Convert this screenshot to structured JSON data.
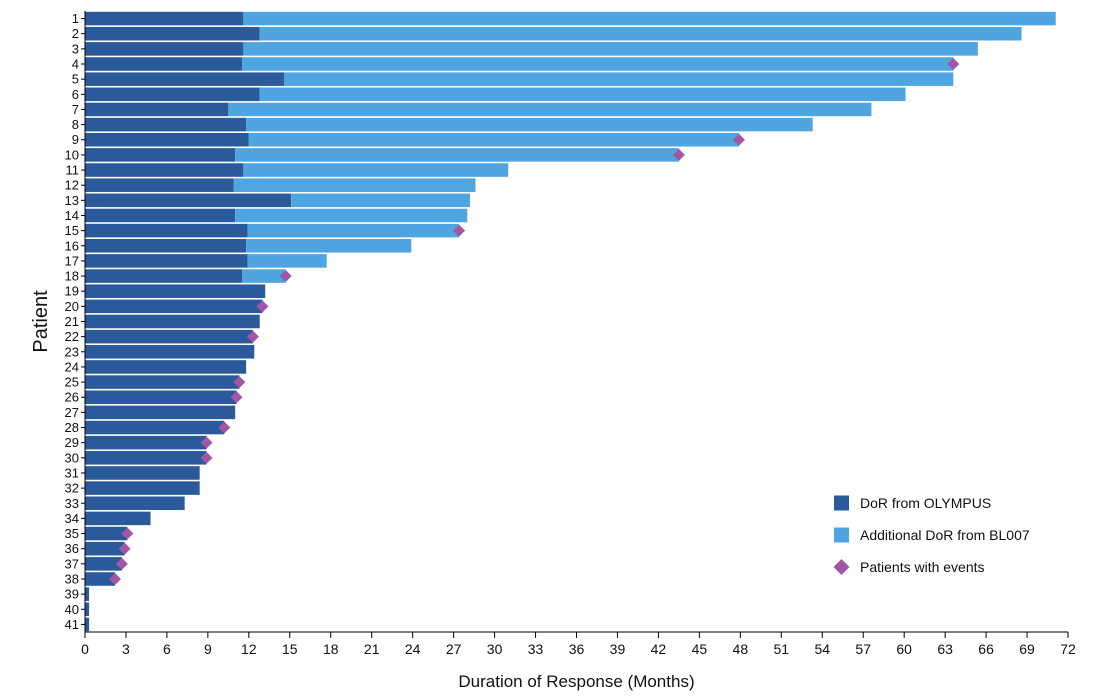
{
  "chart_data": {
    "type": "bar",
    "orientation": "horizontal",
    "stacked": true,
    "xlabel": "Duration of Response (Months)",
    "ylabel": "Patient",
    "xlim": [
      0,
      72
    ],
    "xticks": [
      0,
      3,
      6,
      9,
      12,
      15,
      18,
      21,
      24,
      27,
      30,
      33,
      36,
      39,
      42,
      45,
      48,
      51,
      54,
      57,
      60,
      63,
      66,
      69,
      72
    ],
    "grid": false,
    "legend_position": "bottom-right",
    "categories": [
      "1",
      "2",
      "3",
      "4",
      "5",
      "6",
      "7",
      "8",
      "9",
      "10",
      "11",
      "12",
      "13",
      "14",
      "15",
      "16",
      "17",
      "18",
      "19",
      "20",
      "21",
      "22",
      "23",
      "24",
      "25",
      "26",
      "27",
      "28",
      "29",
      "30",
      "31",
      "32",
      "33",
      "34",
      "35",
      "36",
      "37",
      "38",
      "39",
      "40",
      "41"
    ],
    "series": [
      {
        "name": "DoR from OLYMPUS",
        "color": "#2a5a9a",
        "values": [
          11.6,
          12.8,
          11.6,
          11.5,
          14.6,
          12.8,
          10.5,
          11.8,
          12.0,
          11.0,
          11.6,
          10.9,
          15.1,
          11.0,
          11.9,
          11.8,
          11.9,
          11.5,
          13.2,
          13.0,
          12.8,
          12.3,
          12.4,
          11.8,
          11.3,
          11.1,
          11.0,
          10.2,
          8.9,
          8.9,
          8.4,
          8.4,
          7.3,
          4.8,
          3.1,
          2.9,
          2.7,
          2.2,
          0.3,
          0.3,
          0.3
        ]
      },
      {
        "name": "Additional DoR from BL007",
        "color": "#4ea5df",
        "values": [
          59.5,
          55.8,
          53.8,
          52.1,
          49.0,
          47.3,
          47.1,
          41.5,
          35.9,
          32.5,
          19.4,
          17.7,
          13.1,
          17.0,
          15.5,
          12.1,
          5.8,
          3.2,
          0,
          0,
          0,
          0,
          0,
          0,
          0,
          0,
          0,
          0,
          0,
          0,
          0,
          0,
          0,
          0,
          0,
          0,
          0,
          0,
          0,
          0,
          0
        ]
      }
    ],
    "events": {
      "name": "Patients with events",
      "color": "#a256a6",
      "points": [
        {
          "patient": "4",
          "x": 63.6
        },
        {
          "patient": "9",
          "x": 47.9
        },
        {
          "patient": "10",
          "x": 43.5
        },
        {
          "patient": "15",
          "x": 27.4
        },
        {
          "patient": "18",
          "x": 14.7
        },
        {
          "patient": "20",
          "x": 13.0
        },
        {
          "patient": "22",
          "x": 12.3
        },
        {
          "patient": "25",
          "x": 11.3
        },
        {
          "patient": "26",
          "x": 11.1
        },
        {
          "patient": "28",
          "x": 10.2
        },
        {
          "patient": "29",
          "x": 8.9
        },
        {
          "patient": "30",
          "x": 8.9
        },
        {
          "patient": "35",
          "x": 3.1
        },
        {
          "patient": "36",
          "x": 2.9
        },
        {
          "patient": "37",
          "x": 2.7
        },
        {
          "patient": "38",
          "x": 2.2
        }
      ]
    }
  }
}
